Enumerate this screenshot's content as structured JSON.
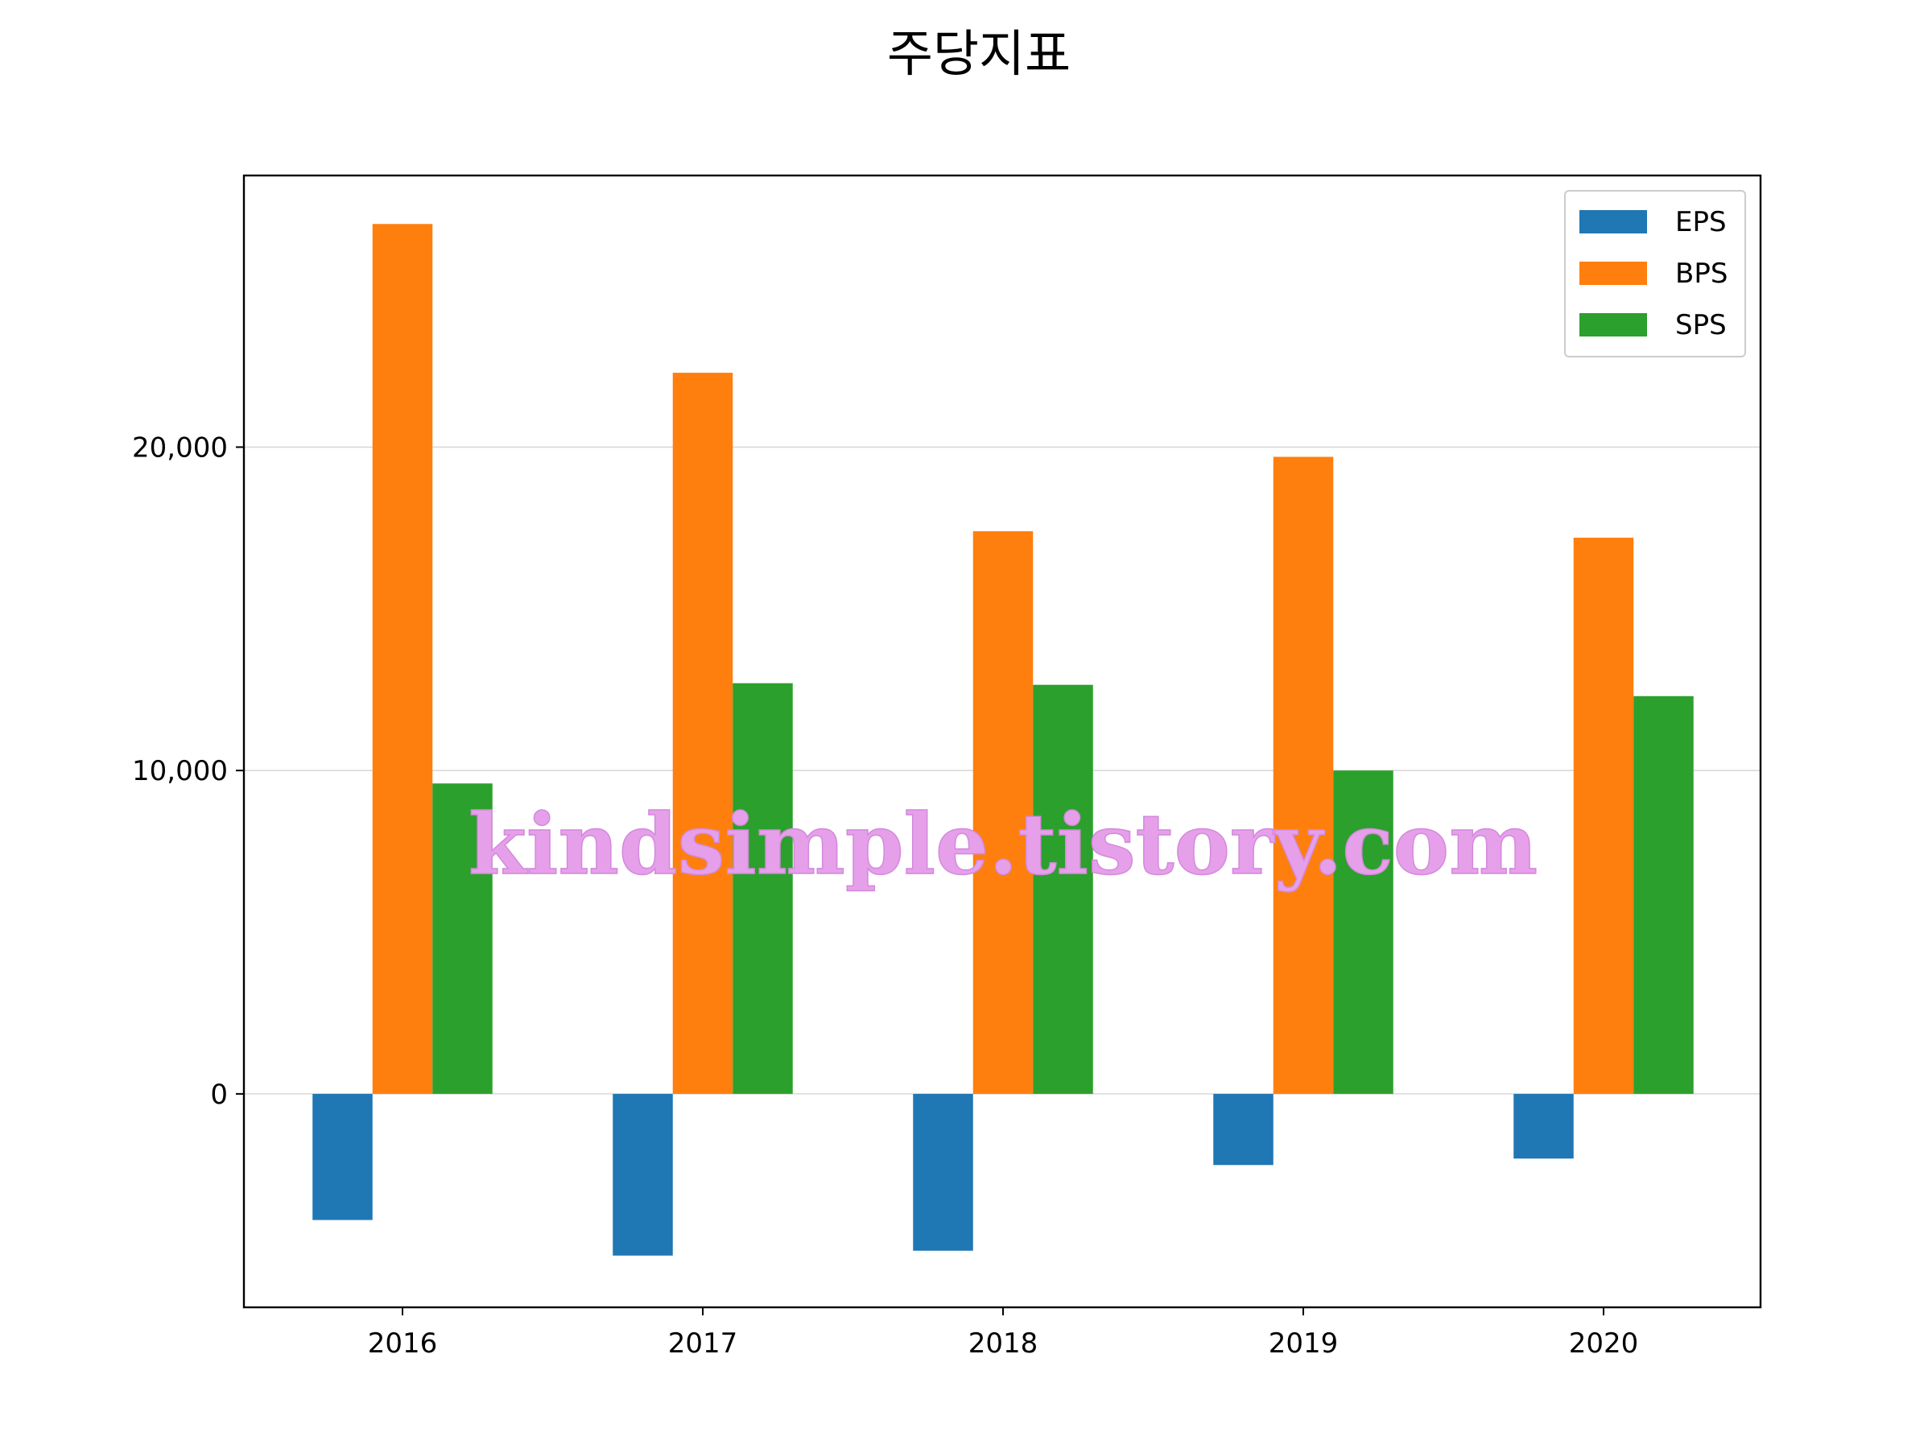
{
  "chart_data": {
    "type": "bar",
    "title": "주당지표",
    "xlabel": "",
    "ylabel": "",
    "categories": [
      "2016",
      "2017",
      "2018",
      "2019",
      "2020"
    ],
    "series": [
      {
        "name": "EPS",
        "color": "#1f77b4",
        "values": [
          -3900,
          -5000,
          -4850,
          -2200,
          -2000
        ]
      },
      {
        "name": "BPS",
        "color": "#ff7f0e",
        "values": [
          26900,
          22300,
          17400,
          19700,
          17200
        ]
      },
      {
        "name": "SPS",
        "color": "#2ca02c",
        "values": [
          9600,
          12700,
          12650,
          10000,
          12300
        ]
      }
    ],
    "ylim": [
      -6600,
      28400
    ],
    "yticks": [
      0,
      10000,
      20000
    ],
    "ytick_labels": [
      "0",
      "10,000",
      "20,000"
    ],
    "grid": true,
    "legend_position": "top-right"
  },
  "watermark": "kindsimple.tistory.com"
}
